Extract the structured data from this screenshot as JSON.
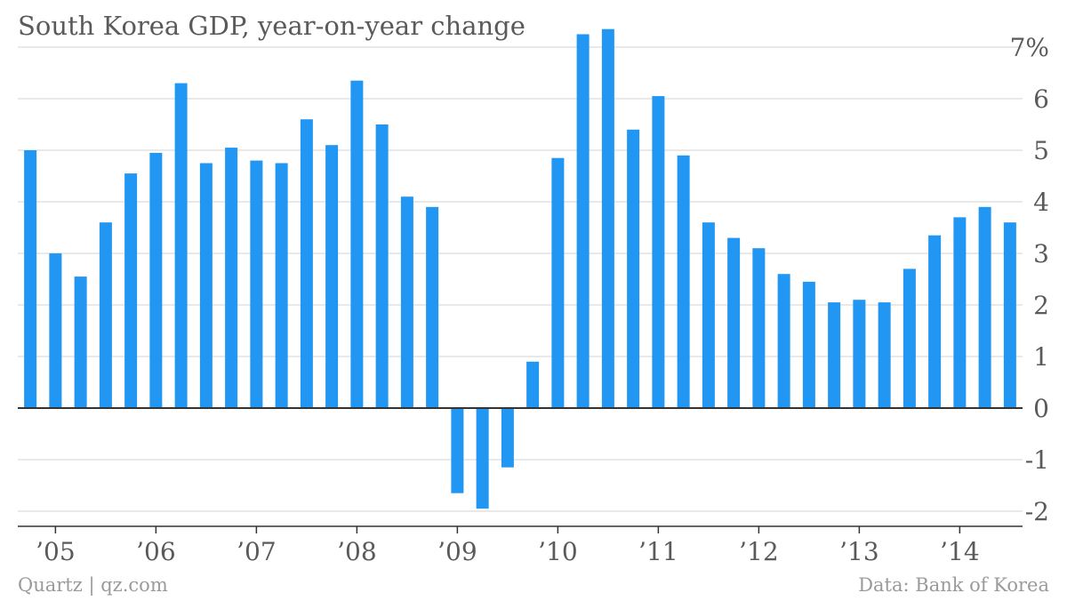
{
  "title": "South Korea GDP, year-on-year change",
  "footer": {
    "source_left": "Quartz | qz.com",
    "source_right": "Data: Bank of Korea"
  },
  "colors": {
    "bar": "#2196f3",
    "grid": "#e2e2e2",
    "axis": "#333333",
    "text": "#5a5a5a",
    "footer": "#9a9a9a"
  },
  "chart_data": {
    "type": "bar",
    "title": "South Korea GDP, year-on-year change",
    "xlabel": "",
    "ylabel": "",
    "ylim": [
      -2,
      7
    ],
    "y_ticks": [
      {
        "value": 7,
        "label": "7%"
      },
      {
        "value": 6,
        "label": "6"
      },
      {
        "value": 5,
        "label": "5"
      },
      {
        "value": 4,
        "label": "4"
      },
      {
        "value": 3,
        "label": "3"
      },
      {
        "value": 2,
        "label": "2"
      },
      {
        "value": 1,
        "label": "1"
      },
      {
        "value": 0,
        "label": "0"
      },
      {
        "value": -1,
        "label": "-1"
      },
      {
        "value": -2,
        "label": "-2"
      }
    ],
    "x_ticks": [
      {
        "index": 1,
        "label": "’05"
      },
      {
        "index": 5,
        "label": "’06"
      },
      {
        "index": 9,
        "label": "’07"
      },
      {
        "index": 13,
        "label": "’08"
      },
      {
        "index": 17,
        "label": "’09"
      },
      {
        "index": 21,
        "label": "’10"
      },
      {
        "index": 25,
        "label": "’11"
      },
      {
        "index": 29,
        "label": "’12"
      },
      {
        "index": 33,
        "label": "’13"
      },
      {
        "index": 37,
        "label": "’14"
      }
    ],
    "grid": true,
    "y_axis_side": "right",
    "values": [
      5.0,
      3.0,
      2.55,
      3.6,
      4.55,
      4.95,
      6.3,
      4.75,
      5.05,
      4.8,
      4.75,
      5.6,
      5.1,
      6.35,
      5.5,
      4.1,
      3.9,
      -1.65,
      -1.95,
      -1.15,
      0.9,
      4.85,
      7.25,
      7.35,
      5.4,
      6.05,
      4.9,
      3.6,
      3.3,
      3.1,
      2.6,
      2.45,
      2.05,
      2.1,
      2.05,
      2.7,
      3.35,
      3.7,
      3.9,
      3.6
    ]
  }
}
